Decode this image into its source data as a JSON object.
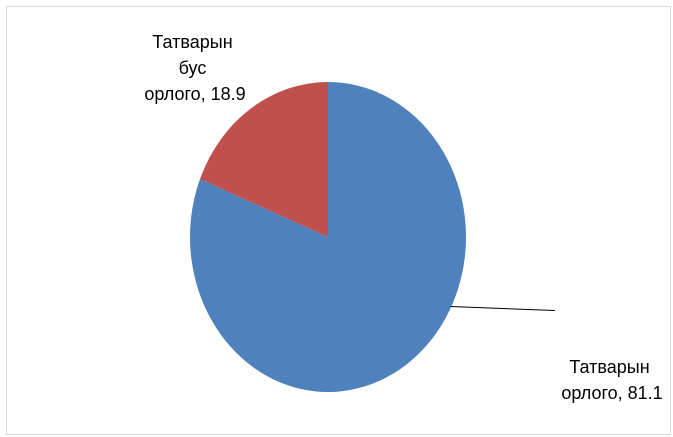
{
  "chart_data": {
    "type": "pie",
    "categories": [
      "Татварын орлого",
      "Татварын бус орлого"
    ],
    "values": [
      81.1,
      18.9
    ],
    "colors": [
      "#4f81bd",
      "#c0504d"
    ],
    "labels": [
      {
        "lines": [
          "Татварын",
          "орлого, 81.1"
        ]
      },
      {
        "lines": [
          "Татварын",
          "бус",
          "орлого, 18.9"
        ]
      }
    ],
    "legend": "none",
    "start_angle_deg": 0,
    "direction": "clockwise"
  }
}
